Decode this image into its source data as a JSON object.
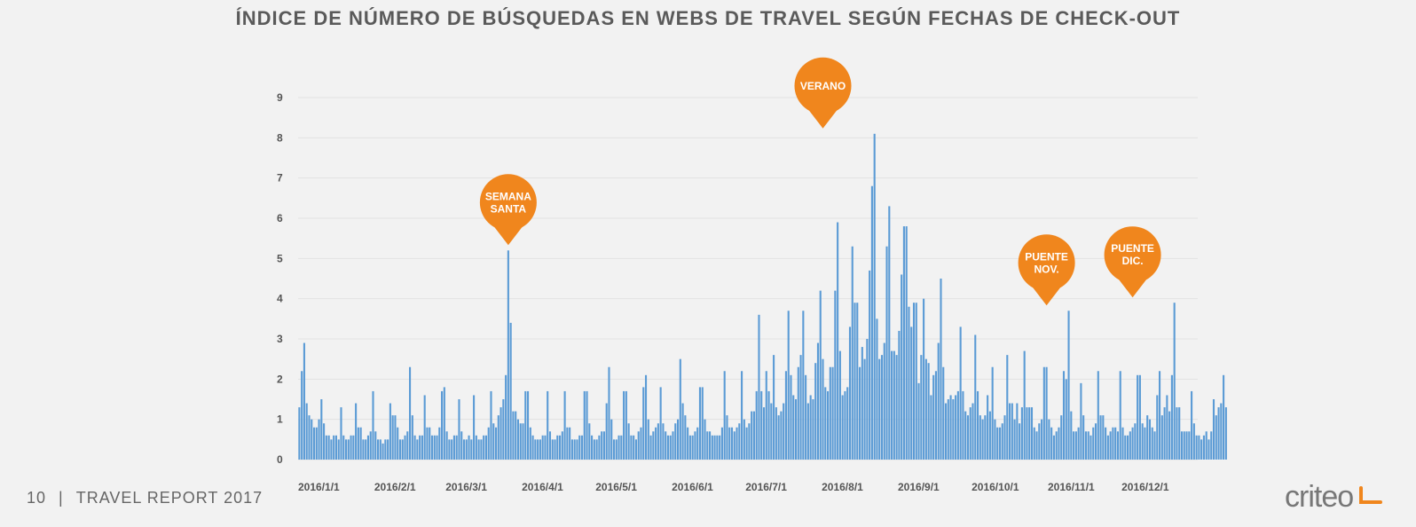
{
  "chart_data": {
    "type": "bar",
    "title": "ÍNDICE DE NÚMERO DE BÚSQUEDAS EN WEBS DE TRAVEL SEGÚN FECHAS DE CHECK-OUT",
    "xlabel": "",
    "ylabel": "",
    "ylim": [
      0,
      9
    ],
    "yticks": [
      0,
      1,
      2,
      3,
      4,
      5,
      6,
      7,
      8,
      9
    ],
    "grid": true,
    "color": "#5b9bd5",
    "x_start": "2016-01-01",
    "x_end": "2016-12-31",
    "x_tick_labels": [
      {
        "date": "2016-01-01",
        "label": "2016/1/1"
      },
      {
        "date": "2016-02-01",
        "label": "2016/2/1"
      },
      {
        "date": "2016-03-01",
        "label": "2016/3/1"
      },
      {
        "date": "2016-04-01",
        "label": "2016/4/1"
      },
      {
        "date": "2016-05-01",
        "label": "2016/5/1"
      },
      {
        "date": "2016-06-01",
        "label": "2016/6/1"
      },
      {
        "date": "2016-07-01",
        "label": "2016/7/1"
      },
      {
        "date": "2016-08-01",
        "label": "2016/8/1"
      },
      {
        "date": "2016-09-01",
        "label": "2016/9/1"
      },
      {
        "date": "2016-10-01",
        "label": "2016/10/1"
      },
      {
        "date": "2016-11-01",
        "label": "2016/11/1"
      },
      {
        "date": "2016-12-01",
        "label": "2016/12/1"
      }
    ],
    "values": [
      1.3,
      2.2,
      2.9,
      1.4,
      1.1,
      1.0,
      0.8,
      0.8,
      1.0,
      1.5,
      0.9,
      0.6,
      0.6,
      0.5,
      0.6,
      0.6,
      0.5,
      1.3,
      0.6,
      0.5,
      0.5,
      0.6,
      0.6,
      1.4,
      0.8,
      0.8,
      0.5,
      0.5,
      0.6,
      0.7,
      1.7,
      0.7,
      0.5,
      0.5,
      0.4,
      0.5,
      0.5,
      1.4,
      1.1,
      1.1,
      0.8,
      0.5,
      0.5,
      0.6,
      0.7,
      2.3,
      1.1,
      0.6,
      0.5,
      0.6,
      0.6,
      1.6,
      0.8,
      0.8,
      0.6,
      0.6,
      0.6,
      0.8,
      1.7,
      1.8,
      0.7,
      0.5,
      0.5,
      0.6,
      0.6,
      1.5,
      0.7,
      0.5,
      0.5,
      0.6,
      0.5,
      1.6,
      0.6,
      0.5,
      0.5,
      0.6,
      0.6,
      0.8,
      1.7,
      0.9,
      0.8,
      1.1,
      1.3,
      1.5,
      2.1,
      5.2,
      3.4,
      1.2,
      1.2,
      1.0,
      0.9,
      0.9,
      1.7,
      1.7,
      0.8,
      0.6,
      0.5,
      0.5,
      0.5,
      0.6,
      0.6,
      1.7,
      0.7,
      0.5,
      0.5,
      0.6,
      0.6,
      0.7,
      1.7,
      0.8,
      0.8,
      0.5,
      0.5,
      0.5,
      0.6,
      0.6,
      1.7,
      1.7,
      0.9,
      0.6,
      0.5,
      0.5,
      0.6,
      0.7,
      0.7,
      1.4,
      2.3,
      1.0,
      0.5,
      0.5,
      0.6,
      0.6,
      1.7,
      1.7,
      0.9,
      0.6,
      0.6,
      0.5,
      0.7,
      0.8,
      1.8,
      2.1,
      1.0,
      0.6,
      0.7,
      0.8,
      0.9,
      1.8,
      0.9,
      0.7,
      0.6,
      0.6,
      0.7,
      0.9,
      1.0,
      2.5,
      1.4,
      1.1,
      0.8,
      0.6,
      0.6,
      0.7,
      0.8,
      1.8,
      1.8,
      1.0,
      0.7,
      0.7,
      0.6,
      0.6,
      0.6,
      0.6,
      0.8,
      2.2,
      1.1,
      0.8,
      0.8,
      0.7,
      0.8,
      0.9,
      2.2,
      1.0,
      0.8,
      0.9,
      1.2,
      1.2,
      1.7,
      3.6,
      1.7,
      1.3,
      2.2,
      1.7,
      1.4,
      2.6,
      1.3,
      1.1,
      1.2,
      1.4,
      2.2,
      3.7,
      2.1,
      1.6,
      1.5,
      2.3,
      2.6,
      3.7,
      2.1,
      1.4,
      1.6,
      1.5,
      2.4,
      2.9,
      4.2,
      2.5,
      1.8,
      1.7,
      2.3,
      2.3,
      4.2,
      5.9,
      2.7,
      1.6,
      1.7,
      1.8,
      3.3,
      5.3,
      3.9,
      3.9,
      2.3,
      2.8,
      2.5,
      3.0,
      4.7,
      6.8,
      8.1,
      3.5,
      2.5,
      2.6,
      2.9,
      5.3,
      6.3,
      2.7,
      2.7,
      2.6,
      3.2,
      4.6,
      5.8,
      5.8,
      3.8,
      3.3,
      3.9,
      3.9,
      1.9,
      2.6,
      4.0,
      2.5,
      2.4,
      1.6,
      2.1,
      2.2,
      2.9,
      4.5,
      2.3,
      1.4,
      1.5,
      1.6,
      1.5,
      1.6,
      1.7,
      3.3,
      1.7,
      1.2,
      1.1,
      1.3,
      1.4,
      3.1,
      1.7,
      1.1,
      1.0,
      1.1,
      1.6,
      1.2,
      2.3,
      1.0,
      0.8,
      0.8,
      0.9,
      1.1,
      2.6,
      1.4,
      1.4,
      1.0,
      1.4,
      0.9,
      1.3,
      2.7,
      1.3,
      1.3,
      1.3,
      0.8,
      0.7,
      0.9,
      1.0,
      2.3,
      2.3,
      1.0,
      0.8,
      0.6,
      0.7,
      0.8,
      1.1,
      2.2,
      2.0,
      3.7,
      1.2,
      0.7,
      0.7,
      0.8,
      1.9,
      1.1,
      0.7,
      0.7,
      0.6,
      0.8,
      0.9,
      2.2,
      1.1,
      1.1,
      0.8,
      0.6,
      0.7,
      0.8,
      0.8,
      0.7,
      2.2,
      0.8,
      0.6,
      0.6,
      0.7,
      0.8,
      0.9,
      2.1,
      2.1,
      0.9,
      0.8,
      1.1,
      1.0,
      0.8,
      0.7,
      1.6,
      2.2,
      1.1,
      1.3,
      1.6,
      1.2,
      2.1,
      3.9,
      1.3,
      1.3,
      0.7,
      0.7,
      0.7,
      0.7,
      1.7,
      0.9,
      0.6,
      0.6,
      0.5,
      0.6,
      0.7,
      0.5,
      0.7,
      1.5,
      1.1,
      1.3,
      1.4,
      2.1,
      1.3
    ],
    "annotations": [
      {
        "label": "SEMANA SANTA",
        "date": "2016-03-26",
        "y": 5.2
      },
      {
        "label": "VERANO",
        "date": "2016-08-01",
        "y": 8.1
      },
      {
        "label": "PUENTE NOV.",
        "date": "2016-10-31",
        "y": 3.7
      },
      {
        "label": "PUENTE DIC.",
        "date": "2016-12-05",
        "y": 3.9
      }
    ],
    "annotation_color": "#f0861d"
  },
  "footer": {
    "page_number": "10",
    "separator": "|",
    "report_title": "TRAVEL REPORT 2017"
  },
  "logo": {
    "text": "criteo",
    "accent_color": "#f0861d"
  }
}
